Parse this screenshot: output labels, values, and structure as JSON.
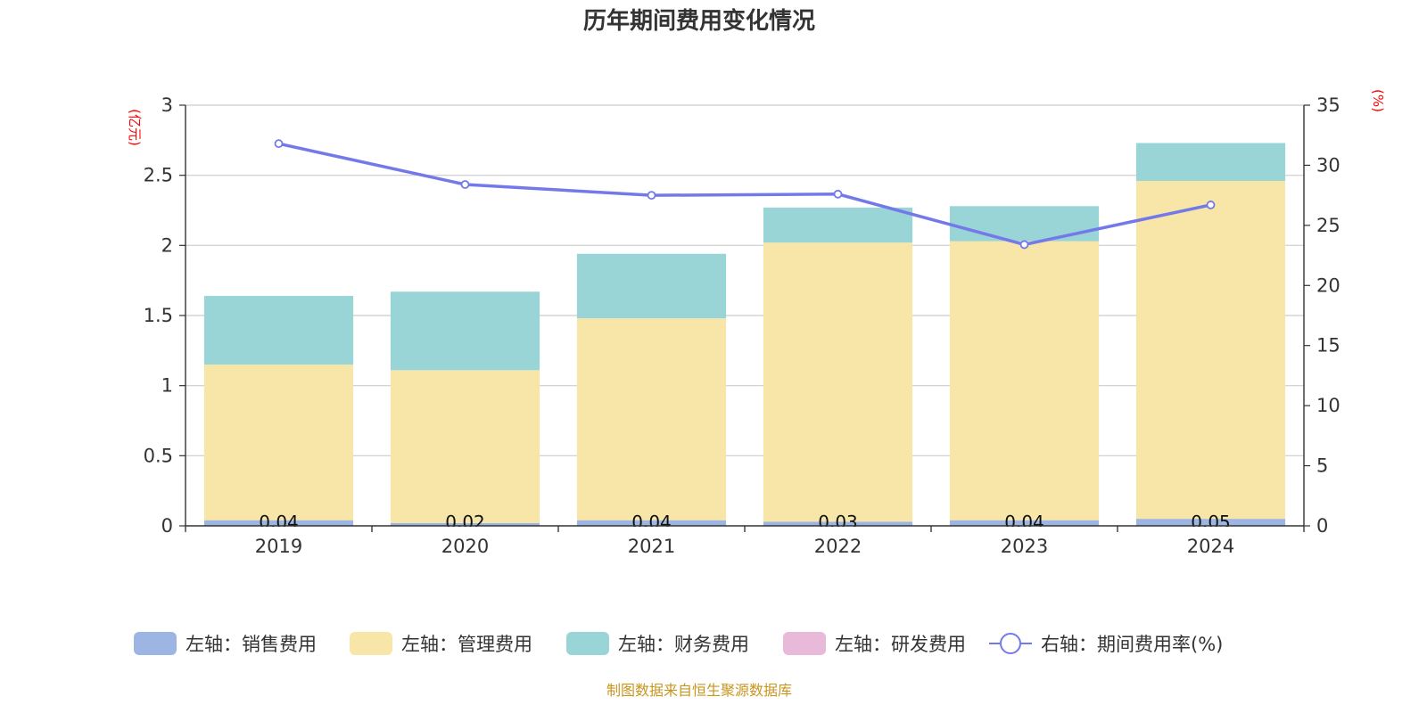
{
  "chart_data": {
    "type": "bar",
    "title": "历年期间费用变化情况",
    "categories": [
      "2019",
      "2020",
      "2021",
      "2022",
      "2023",
      "2024"
    ],
    "y_left": {
      "unit": "(亿元)",
      "ylim": [
        0,
        3
      ],
      "ticks": [
        "0",
        "0.5",
        "1",
        "1.5",
        "2",
        "2.5",
        "3"
      ]
    },
    "y_right": {
      "unit": "(%)",
      "ylim": [
        0,
        35
      ],
      "ticks": [
        "0",
        "5",
        "10",
        "15",
        "20",
        "25",
        "30",
        "35"
      ]
    },
    "stacked": true,
    "grid": true,
    "legend_position": "bottom",
    "series": [
      {
        "name": "左轴：销售费用",
        "type": "bar",
        "axis": "left",
        "color": "#9db5e2",
        "values": [
          0.04,
          0.02,
          0.04,
          0.03,
          0.04,
          0.05
        ],
        "labels": [
          "0.04",
          "0.02",
          "0.04",
          "0.03",
          "0.04",
          "0.05"
        ]
      },
      {
        "name": "左轴：管理费用",
        "type": "bar",
        "axis": "left",
        "color": "#f7e6a8",
        "values": [
          1.11,
          1.09,
          1.44,
          1.99,
          1.99,
          2.41
        ]
      },
      {
        "name": "左轴：财务费用",
        "type": "bar",
        "axis": "left",
        "color": "#99d4d6",
        "values": [
          0.49,
          0.56,
          0.46,
          0.25,
          0.25,
          0.27
        ]
      },
      {
        "name": "左轴：研发费用",
        "type": "bar",
        "axis": "left",
        "color": "#e8b9d9",
        "values": [
          0,
          0,
          0,
          0,
          0,
          0
        ]
      },
      {
        "name": "右轴：期间费用率(%)",
        "type": "line",
        "axis": "right",
        "color": "#7479ea",
        "values": [
          31.8,
          28.4,
          27.5,
          27.6,
          23.4,
          26.7
        ]
      }
    ]
  },
  "footer": {
    "source": "制图数据来自恒生聚源数据库"
  }
}
